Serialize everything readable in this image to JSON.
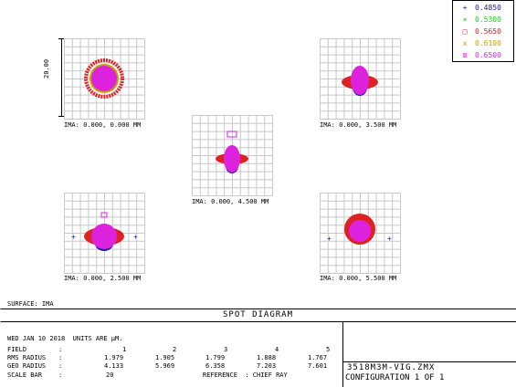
{
  "legend": {
    "items": [
      {
        "marker": "+",
        "value": "0.4850",
        "color": "#1a1aa8"
      },
      {
        "marker": "×",
        "value": "0.5300",
        "color": "#22cc22"
      },
      {
        "marker": "□",
        "value": "0.5650",
        "color": "#dd2222"
      },
      {
        "marker": "x",
        "value": "0.6100",
        "color": "#c8a000"
      },
      {
        "marker": "⊠",
        "value": "0.6500",
        "color": "#dd22dd"
      }
    ]
  },
  "scale": {
    "label": "20.00"
  },
  "fields": [
    {
      "label": "IMA: 0.000, 0.000 MM"
    },
    {
      "label": "IMA: 0.000, 3.500 MM"
    },
    {
      "label": "IMA: 0.000, 4.500 MM"
    },
    {
      "label": "IMA: 0.000, 2.500 MM"
    },
    {
      "label": "IMA: 0.000, 5.500 MM"
    }
  ],
  "surface": "SURFACE: IMA",
  "title": "SPOT DIAGRAM",
  "info": {
    "date_line": "WED JAN 10 2018  UNITS ARE µM.",
    "field_label": "FIELD",
    "rms_label": "RMS RADIUS",
    "geo_label": "GEO RADIUS",
    "scale_label": "SCALE BAR",
    "colon": ":",
    "field_values": [
      "1",
      "2",
      "3",
      "4",
      "5"
    ],
    "rms_values": [
      "1.979",
      "1.905",
      "1.799",
      "1.888",
      "1.767"
    ],
    "geo_values": [
      "4.133",
      "5.969",
      "6.358",
      "7.203",
      "7.601"
    ],
    "scale_value": "20",
    "reference": "REFERENCE  : CHIEF RAY"
  },
  "file": {
    "name": "3518M3M-VIG.ZMX",
    "configuration": "CONFIGURATION 1 OF 1"
  }
}
